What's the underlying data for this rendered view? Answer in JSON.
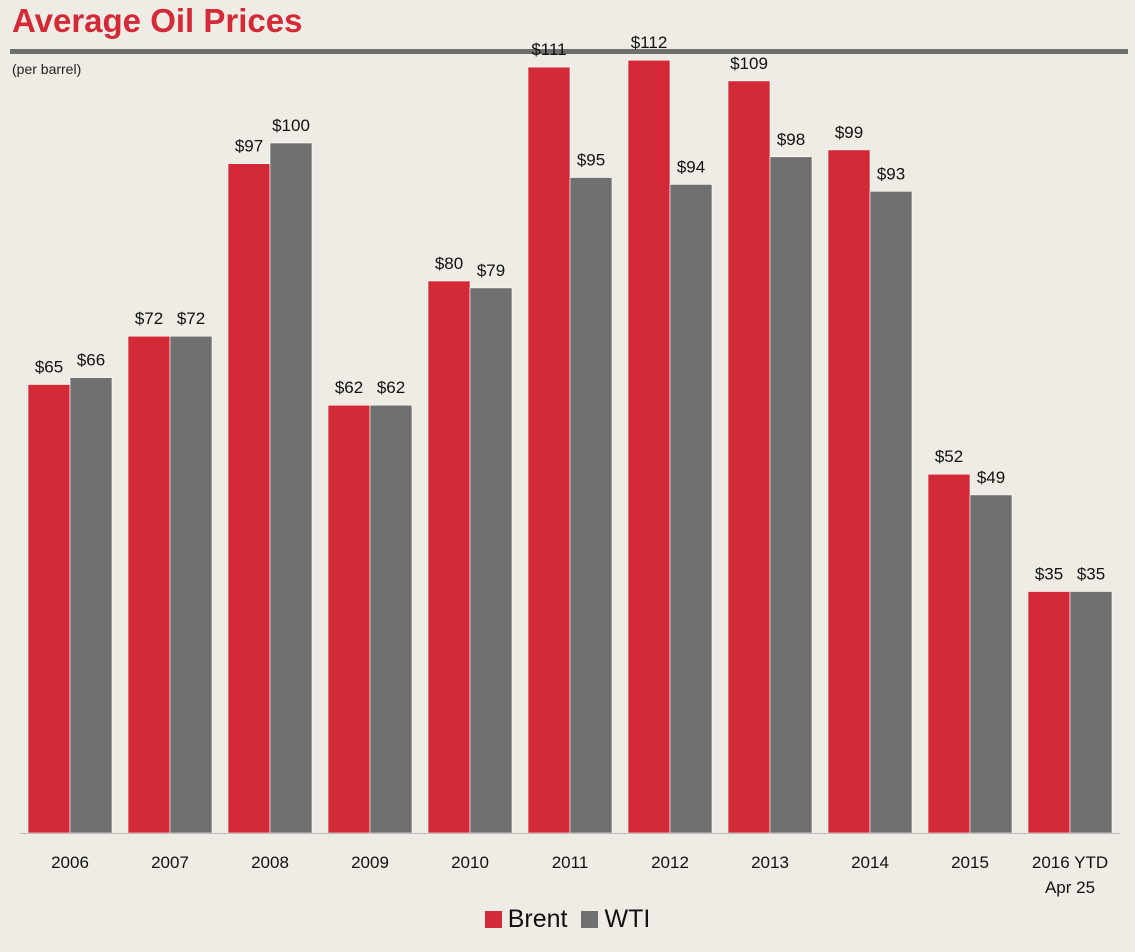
{
  "title": "Average Oil Prices",
  "subtitle": "(per barrel)",
  "chart_data": {
    "type": "bar",
    "categories": [
      "2006",
      "2007",
      "2008",
      "2009",
      "2010",
      "2011",
      "2012",
      "2013",
      "2014",
      "2015",
      "2016 YTD\nApr 25"
    ],
    "series": [
      {
        "name": "Brent",
        "color": "#d42a38",
        "values": [
          65,
          72,
          97,
          62,
          80,
          111,
          112,
          109,
          99,
          52,
          35
        ],
        "labels": [
          "$65",
          "$72",
          "$97",
          "$62",
          "$80",
          "$111",
          "$112",
          "$109",
          "$99",
          "$52",
          "$35"
        ]
      },
      {
        "name": "WTI",
        "color": "#707070",
        "values": [
          66,
          72,
          100,
          62,
          79,
          95,
          94,
          98,
          93,
          49,
          35
        ],
        "labels": [
          "$66",
          "$72",
          "$100",
          "$62",
          "$79",
          "$95",
          "$94",
          "$98",
          "$93",
          "$49",
          "$35"
        ]
      }
    ],
    "ylim": [
      0,
      120
    ],
    "grid": false,
    "legend_position": "bottom-center"
  }
}
